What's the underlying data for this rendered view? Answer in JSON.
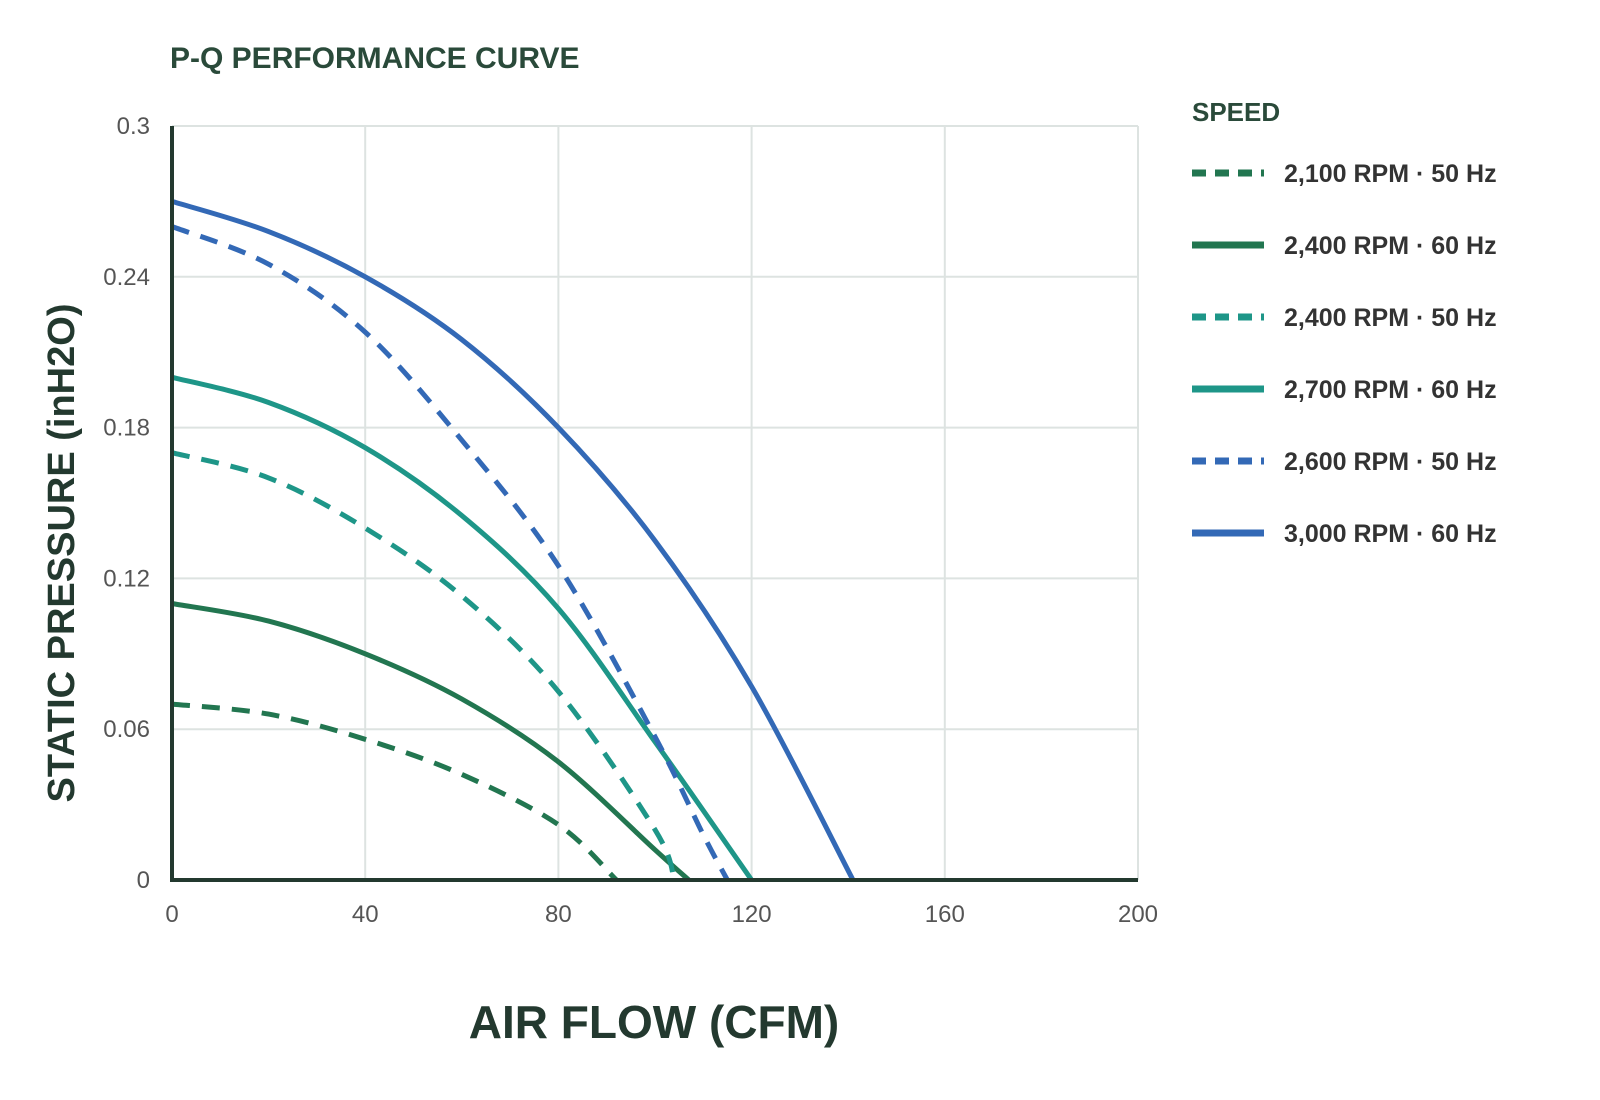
{
  "chart_data": {
    "type": "line",
    "title": "P-Q PERFORMANCE CURVE",
    "xlabel": "AIR FLOW (CFM)",
    "ylabel": "STATIC PRESSURE (inH2O)",
    "xlim": [
      0,
      200
    ],
    "ylim": [
      0,
      0.3
    ],
    "x_ticks": [
      "0",
      "40",
      "80",
      "120",
      "160",
      "200"
    ],
    "y_ticks": [
      "0",
      "0.06",
      "0.12",
      "0.18",
      "0.24",
      "0.3"
    ],
    "grid": true,
    "legend": {
      "title": "SPEED",
      "position": "right"
    },
    "series": [
      {
        "name": "2,100 RPM · 50 Hz",
        "color": "#227650",
        "dashed": true,
        "points": [
          [
            0,
            0.07
          ],
          [
            20,
            0.066
          ],
          [
            40,
            0.056
          ],
          [
            60,
            0.042
          ],
          [
            80,
            0.022
          ],
          [
            92,
            0
          ]
        ]
      },
      {
        "name": "2,400 RPM · 60 Hz",
        "color": "#227650",
        "dashed": false,
        "points": [
          [
            0,
            0.11
          ],
          [
            20,
            0.103
          ],
          [
            40,
            0.09
          ],
          [
            60,
            0.072
          ],
          [
            80,
            0.047
          ],
          [
            100,
            0.012
          ],
          [
            107,
            0
          ]
        ]
      },
      {
        "name": "2,400 RPM · 50 Hz",
        "color": "#1e9688",
        "dashed": true,
        "points": [
          [
            0,
            0.17
          ],
          [
            20,
            0.16
          ],
          [
            40,
            0.14
          ],
          [
            60,
            0.113
          ],
          [
            80,
            0.075
          ],
          [
            100,
            0.02
          ],
          [
            104,
            0
          ]
        ]
      },
      {
        "name": "2,700 RPM · 60 Hz",
        "color": "#1e9688",
        "dashed": false,
        "points": [
          [
            0,
            0.2
          ],
          [
            20,
            0.19
          ],
          [
            40,
            0.172
          ],
          [
            60,
            0.145
          ],
          [
            80,
            0.108
          ],
          [
            100,
            0.055
          ],
          [
            120,
            0
          ]
        ]
      },
      {
        "name": "2,600 RPM · 50 Hz",
        "color": "#3369b6",
        "dashed": true,
        "points": [
          [
            0,
            0.26
          ],
          [
            20,
            0.245
          ],
          [
            40,
            0.218
          ],
          [
            60,
            0.175
          ],
          [
            80,
            0.125
          ],
          [
            100,
            0.057
          ],
          [
            110,
            0.018
          ],
          [
            115,
            0
          ]
        ]
      },
      {
        "name": "3,000 RPM · 60 Hz",
        "color": "#3369b6",
        "dashed": false,
        "points": [
          [
            0,
            0.27
          ],
          [
            20,
            0.258
          ],
          [
            40,
            0.24
          ],
          [
            60,
            0.215
          ],
          [
            80,
            0.18
          ],
          [
            100,
            0.135
          ],
          [
            120,
            0.077
          ],
          [
            141,
            0
          ]
        ]
      }
    ]
  }
}
